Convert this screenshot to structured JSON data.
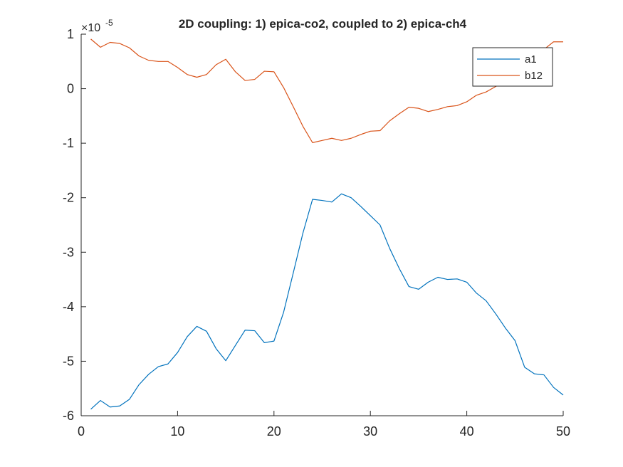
{
  "chart_data": {
    "type": "line",
    "title": "2D coupling: 1) epica-co2, coupled to 2) epica-ch4",
    "xlabel": "",
    "ylabel": "",
    "y_exponent_label": "×10",
    "y_exponent": "-5",
    "xlim": [
      0,
      50
    ],
    "ylim": [
      -6,
      1
    ],
    "xticks": [
      0,
      10,
      20,
      30,
      40,
      50
    ],
    "yticks": [
      -6,
      -5,
      -4,
      -3,
      -2,
      -1,
      0,
      1
    ],
    "grid": false,
    "legend_position": "top-right",
    "x": [
      1,
      2,
      3,
      4,
      5,
      6,
      7,
      8,
      9,
      10,
      11,
      12,
      13,
      14,
      15,
      16,
      17,
      18,
      19,
      20,
      21,
      22,
      23,
      24,
      25,
      26,
      27,
      28,
      29,
      30,
      31,
      32,
      33,
      34,
      35,
      36,
      37,
      38,
      39,
      40,
      41,
      42,
      43,
      44,
      45,
      46,
      47,
      48,
      49,
      50
    ],
    "series": [
      {
        "name": "a1",
        "color": "#0072BD",
        "values": [
          -5.88,
          -5.72,
          -5.84,
          -5.82,
          -5.7,
          -5.43,
          -5.24,
          -5.1,
          -5.05,
          -4.84,
          -4.55,
          -4.36,
          -4.45,
          -4.77,
          -4.99,
          -4.71,
          -4.43,
          -4.44,
          -4.66,
          -4.63,
          -4.1,
          -3.38,
          -2.65,
          -2.03,
          -2.05,
          -2.08,
          -1.93,
          -2.0,
          -2.16,
          -2.33,
          -2.5,
          -2.93,
          -3.3,
          -3.63,
          -3.68,
          -3.55,
          -3.46,
          -3.5,
          -3.49,
          -3.55,
          -3.75,
          -3.89,
          -4.13,
          -4.39,
          -4.62,
          -5.11,
          -5.23,
          -5.25,
          -5.48,
          -5.62
        ]
      },
      {
        "name": "b12",
        "color": "#D95319",
        "values": [
          0.91,
          0.76,
          0.85,
          0.83,
          0.75,
          0.6,
          0.52,
          0.5,
          0.5,
          0.39,
          0.26,
          0.21,
          0.26,
          0.44,
          0.54,
          0.31,
          0.15,
          0.17,
          0.32,
          0.31,
          0.02,
          -0.33,
          -0.69,
          -0.99,
          -0.95,
          -0.91,
          -0.95,
          -0.91,
          -0.84,
          -0.78,
          -0.77,
          -0.59,
          -0.46,
          -0.34,
          -0.36,
          -0.42,
          -0.38,
          -0.33,
          -0.31,
          -0.24,
          -0.12,
          -0.06,
          0.04,
          0.12,
          0.25,
          0.45,
          0.6,
          0.72,
          0.86,
          0.86
        ]
      }
    ]
  }
}
